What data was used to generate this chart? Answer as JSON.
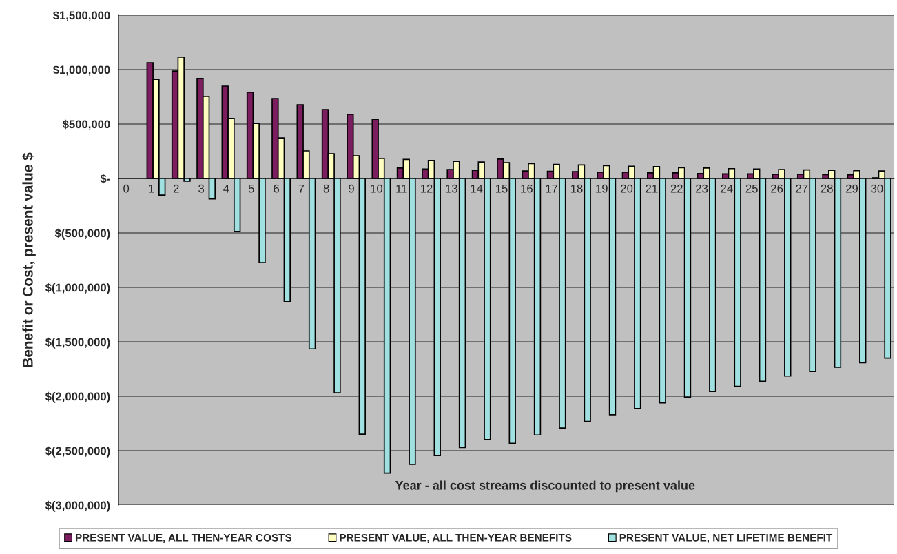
{
  "chart_data": {
    "type": "bar",
    "ylabel": "Benefit or Cost, present value $",
    "xlabel": "Year - all cost streams discounted to present value",
    "categories": [
      "0",
      "1",
      "2",
      "3",
      "4",
      "5",
      "6",
      "7",
      "8",
      "9",
      "10",
      "11",
      "12",
      "13",
      "14",
      "15",
      "16",
      "17",
      "18",
      "19",
      "20",
      "21",
      "22",
      "23",
      "24",
      "25",
      "26",
      "27",
      "28",
      "29",
      "30"
    ],
    "series": [
      {
        "name": "PRESENT VALUE, ALL THEN-YEAR COSTS",
        "color": "#7b1d5e",
        "values": [
          null,
          1063000,
          987000,
          918000,
          848000,
          791000,
          734000,
          677000,
          633000,
          589000,
          544000,
          96000,
          87000,
          81000,
          75000,
          178000,
          69000,
          66000,
          63000,
          57000,
          57000,
          51000,
          51000,
          45000,
          42000,
          42000,
          39000,
          39000,
          36000,
          33000,
          6000
        ]
      },
      {
        "name": "PRESENT VALUE, ALL THEN-YEAR BENEFITS",
        "color": "#ffffc0",
        "values": [
          null,
          911000,
          1114000,
          753000,
          551000,
          506000,
          373000,
          253000,
          228000,
          209000,
          184000,
          175000,
          166000,
          157000,
          151000,
          145000,
          136000,
          130000,
          124000,
          118000,
          112000,
          109000,
          99000,
          96000,
          90000,
          87000,
          81000,
          78000,
          75000,
          72000,
          69000
        ]
      },
      {
        "name": "PRESENT VALUE, NET LIFETIME BENEFIT",
        "color": "#a0e0e0",
        "values": [
          null,
          -153000,
          -24000,
          -187000,
          -487000,
          -772000,
          -1132000,
          -1565000,
          -1969000,
          -2349000,
          -2707000,
          -2626000,
          -2546000,
          -2471000,
          -2397000,
          -2432000,
          -2356000,
          -2292000,
          -2231000,
          -2170000,
          -2113000,
          -2061000,
          -2007000,
          -1956000,
          -1908000,
          -1863000,
          -1815000,
          -1773000,
          -1734000,
          -1692000,
          -1650000
        ]
      }
    ],
    "ylim": [
      -3000000,
      1500000
    ],
    "yticks": [
      {
        "value": -3000000,
        "label": "$(3,000,000)"
      },
      {
        "value": -2500000,
        "label": "$(2,500,000)"
      },
      {
        "value": -2000000,
        "label": "$(2,000,000)"
      },
      {
        "value": -1500000,
        "label": "$(1,500,000)"
      },
      {
        "value": -1000000,
        "label": "$(1,000,000)"
      },
      {
        "value": -500000,
        "label": "$(500,000)"
      },
      {
        "value": 0,
        "label": "$-"
      },
      {
        "value": 500000,
        "label": "$500,000"
      },
      {
        "value": 1000000,
        "label": "$1,000,000"
      },
      {
        "value": 1500000,
        "label": "$1,500,000"
      }
    ],
    "grid": "y",
    "legend": "bottom"
  }
}
